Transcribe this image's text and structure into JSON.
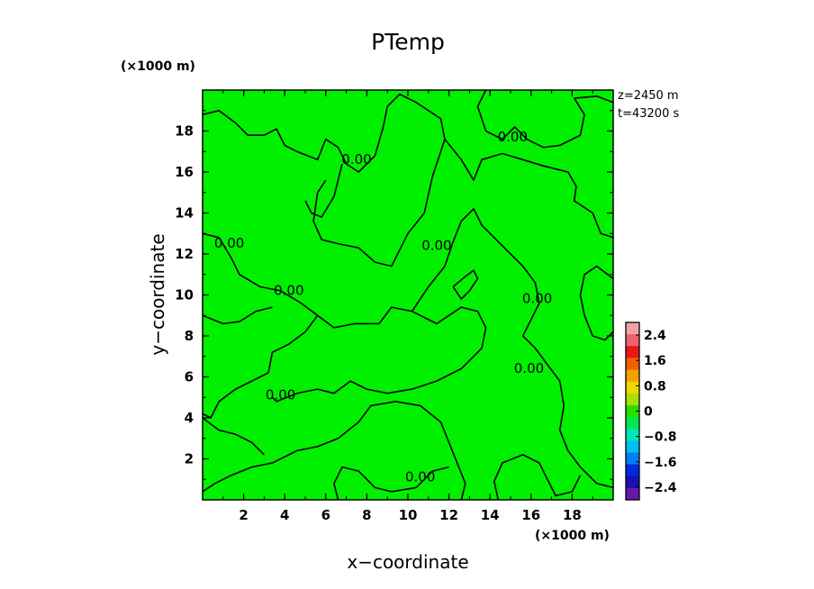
{
  "chart_data": {
    "type": "heatmap",
    "title": "PTemp",
    "xlabel": "x−coordinate",
    "ylabel": "y−coordinate",
    "x_unit": "(×1000 m)",
    "y_unit": "(×1000 m)",
    "xlim": [
      0,
      20
    ],
    "ylim": [
      0,
      20
    ],
    "x_ticks": [
      2,
      4,
      6,
      8,
      10,
      12,
      14,
      16,
      18
    ],
    "y_ticks": [
      2,
      4,
      6,
      8,
      10,
      12,
      14,
      16,
      18
    ],
    "x_tick_labels": [
      "2",
      "4",
      "6",
      "8",
      "10",
      "12",
      "14",
      "16",
      "18"
    ],
    "y_tick_labels": [
      "2",
      "4",
      "6",
      "8",
      "10",
      "12",
      "14",
      "16",
      "18"
    ],
    "info": [
      "z=2450 m",
      "t=43200 s"
    ],
    "colorbar": {
      "range": [
        -2.8,
        2.8
      ],
      "tick_values": [
        2.4,
        1.6,
        0.8,
        0,
        -0.8,
        -1.6,
        -2.4
      ],
      "tick_labels": [
        "2.4",
        "1.6",
        "0.8",
        "0",
        "−0.8",
        "−1.6",
        "−2.4"
      ],
      "colors": [
        "#f4a0a8",
        "#f06070",
        "#e81818",
        "#f06000",
        "#f8a000",
        "#f0d800",
        "#a8e000",
        "#28e000",
        "#00e850",
        "#00e8b8",
        "#00c0f0",
        "#0080f8",
        "#0028e0",
        "#1810b0",
        "#6818a8"
      ]
    },
    "field": {
      "background_color": "#00f000",
      "dominant_value_range": [
        -0.4,
        0.4
      ],
      "contour_levels": [
        0.0
      ],
      "contour_labels": [
        "0.00",
        "0.00",
        "0.00",
        "0.00",
        "0.00",
        "0.00",
        "0.00",
        "0.00",
        "0.00"
      ],
      "contour_paths": [
        [
          [
            0,
            18.8
          ],
          [
            0.8,
            19.0
          ],
          [
            1.6,
            18.4
          ],
          [
            2.2,
            17.8
          ],
          [
            3.0,
            17.8
          ],
          [
            3.6,
            18.1
          ],
          [
            4.0,
            17.3
          ],
          [
            4.6,
            17.0
          ],
          [
            5.6,
            16.6
          ],
          [
            6.0,
            17.6
          ],
          [
            6.6,
            17.2
          ],
          [
            7.0,
            16.4
          ],
          [
            7.6,
            16.0
          ],
          [
            8.4,
            16.8
          ],
          [
            8.8,
            18.2
          ],
          [
            9.0,
            19.2
          ],
          [
            9.6,
            19.8
          ],
          [
            10.4,
            19.4
          ],
          [
            11.6,
            18.6
          ],
          [
            11.8,
            17.6
          ],
          [
            11.2,
            15.8
          ],
          [
            10.8,
            14.0
          ],
          [
            10.0,
            13.0
          ],
          [
            9.2,
            11.4
          ],
          [
            8.4,
            11.6
          ],
          [
            7.6,
            12.3
          ],
          [
            6.6,
            12.5
          ],
          [
            5.8,
            12.7
          ],
          [
            5.4,
            13.6
          ],
          [
            5.6,
            15.0
          ],
          [
            6.0,
            15.6
          ]
        ],
        [
          [
            13.8,
            20
          ],
          [
            13.4,
            19.2
          ],
          [
            13.8,
            18.0
          ],
          [
            14.6,
            17.6
          ],
          [
            15.2,
            18.2
          ],
          [
            15.8,
            17.6
          ],
          [
            16.6,
            17.2
          ],
          [
            17.4,
            17.3
          ],
          [
            18.4,
            17.8
          ],
          [
            18.6,
            18.8
          ],
          [
            18.1,
            19.6
          ],
          [
            19.2,
            19.7
          ],
          [
            20,
            19.4
          ]
        ],
        [
          [
            11.8,
            17.6
          ],
          [
            12.6,
            16.6
          ],
          [
            13.2,
            15.6
          ],
          [
            13.6,
            16.6
          ],
          [
            14.6,
            16.9
          ],
          [
            15.6,
            16.6
          ],
          [
            16.6,
            16.3
          ],
          [
            17.8,
            16.0
          ],
          [
            18.2,
            15.3
          ],
          [
            18.1,
            14.6
          ],
          [
            19.0,
            14.0
          ],
          [
            19.4,
            13.0
          ],
          [
            20,
            12.8
          ]
        ],
        [
          [
            0,
            13.0
          ],
          [
            0.8,
            12.8
          ],
          [
            1.4,
            11.8
          ],
          [
            1.8,
            11.0
          ],
          [
            2.8,
            10.4
          ],
          [
            3.8,
            10.2
          ],
          [
            4.8,
            9.6
          ],
          [
            5.6,
            9.0
          ],
          [
            5.0,
            8.2
          ],
          [
            4.2,
            7.6
          ],
          [
            3.4,
            7.2
          ],
          [
            3.2,
            6.2
          ],
          [
            2.4,
            5.8
          ],
          [
            1.6,
            5.4
          ],
          [
            0.8,
            4.8
          ],
          [
            0.4,
            4.0
          ],
          [
            0,
            4.2
          ]
        ],
        [
          [
            0,
            9.0
          ],
          [
            1.0,
            8.6
          ],
          [
            1.8,
            8.7
          ],
          [
            2.6,
            9.2
          ],
          [
            3.4,
            9.4
          ]
        ],
        [
          [
            3.4,
            5.0
          ],
          [
            3.6,
            4.8
          ],
          [
            4.6,
            5.2
          ],
          [
            5.6,
            5.4
          ],
          [
            6.4,
            5.2
          ],
          [
            7.2,
            5.8
          ],
          [
            8.0,
            5.4
          ],
          [
            9.0,
            5.2
          ],
          [
            10.2,
            5.4
          ],
          [
            11.4,
            5.8
          ],
          [
            12.6,
            6.4
          ],
          [
            13.6,
            7.4
          ],
          [
            13.8,
            8.4
          ],
          [
            13.4,
            9.2
          ],
          [
            12.6,
            9.4
          ],
          [
            11.4,
            8.6
          ],
          [
            10.2,
            9.2
          ],
          [
            9.2,
            9.4
          ],
          [
            8.6,
            8.6
          ],
          [
            7.4,
            8.6
          ],
          [
            6.4,
            8.4
          ],
          [
            5.6,
            9.0
          ]
        ],
        [
          [
            10.2,
            9.2
          ],
          [
            11.0,
            10.4
          ],
          [
            11.8,
            11.4
          ],
          [
            12.2,
            12.6
          ],
          [
            12.6,
            13.6
          ],
          [
            13.2,
            14.2
          ],
          [
            13.6,
            13.4
          ],
          [
            14.2,
            12.8
          ],
          [
            14.8,
            12.2
          ],
          [
            15.6,
            11.4
          ],
          [
            16.2,
            10.6
          ],
          [
            16.4,
            9.6
          ],
          [
            16.0,
            8.8
          ],
          [
            15.6,
            8.0
          ],
          [
            16.2,
            7.4
          ],
          [
            16.8,
            6.6
          ],
          [
            17.4,
            5.8
          ],
          [
            17.6,
            4.6
          ],
          [
            17.4,
            3.4
          ],
          [
            17.8,
            2.4
          ],
          [
            18.4,
            1.6
          ],
          [
            19.2,
            0.8
          ],
          [
            20,
            0.6
          ]
        ],
        [
          [
            0,
            0.4
          ],
          [
            0.6,
            0.8
          ],
          [
            1.4,
            1.2
          ],
          [
            2.4,
            1.6
          ],
          [
            3.4,
            1.8
          ],
          [
            4.6,
            2.4
          ],
          [
            5.6,
            2.6
          ],
          [
            6.6,
            3.0
          ],
          [
            7.6,
            3.8
          ],
          [
            8.2,
            4.6
          ],
          [
            9.4,
            4.8
          ],
          [
            10.6,
            4.6
          ],
          [
            11.6,
            3.8
          ],
          [
            12.0,
            2.8
          ],
          [
            12.4,
            1.8
          ],
          [
            12.8,
            0.8
          ],
          [
            12.6,
            0
          ]
        ],
        [
          [
            6.6,
            0
          ],
          [
            6.4,
            0.8
          ],
          [
            6.8,
            1.6
          ],
          [
            7.6,
            1.4
          ],
          [
            8.4,
            0.6
          ],
          [
            9.2,
            0.4
          ],
          [
            10.4,
            0.6
          ],
          [
            11.2,
            1.4
          ],
          [
            12.0,
            1.6
          ]
        ],
        [
          [
            14.4,
            0
          ],
          [
            14.2,
            0.9
          ],
          [
            14.6,
            1.8
          ],
          [
            15.6,
            2.2
          ],
          [
            16.4,
            1.8
          ],
          [
            16.8,
            1.0
          ],
          [
            17.2,
            0.2
          ],
          [
            18.0,
            0.4
          ],
          [
            18.4,
            1.2
          ]
        ],
        [
          [
            5.0,
            14.6
          ],
          [
            5.3,
            14.0
          ],
          [
            5.8,
            13.8
          ],
          [
            6.4,
            14.8
          ],
          [
            6.6,
            15.6
          ],
          [
            6.8,
            16.4
          ]
        ],
        [
          [
            12.2,
            10.4
          ],
          [
            12.8,
            10.9
          ],
          [
            13.2,
            11.2
          ],
          [
            13.4,
            10.8
          ],
          [
            13.0,
            10.2
          ],
          [
            12.6,
            9.8
          ],
          [
            12.2,
            10.4
          ]
        ],
        [
          [
            20,
            10.8
          ],
          [
            19.2,
            11.4
          ],
          [
            18.6,
            11.0
          ],
          [
            18.4,
            10.0
          ],
          [
            18.6,
            9.0
          ],
          [
            19.0,
            8.0
          ],
          [
            19.6,
            7.8
          ],
          [
            20,
            8.2
          ]
        ],
        [
          [
            0,
            4.0
          ],
          [
            0.8,
            3.4
          ],
          [
            1.6,
            3.2
          ],
          [
            2.4,
            2.8
          ],
          [
            3.0,
            2.2
          ]
        ]
      ],
      "label_positions": [
        [
          7.5,
          16.6
        ],
        [
          15.1,
          17.7
        ],
        [
          11.4,
          12.4
        ],
        [
          1.3,
          12.5
        ],
        [
          4.2,
          10.2
        ],
        [
          16.3,
          9.8
        ],
        [
          15.9,
          6.4
        ],
        [
          3.8,
          5.1
        ],
        [
          10.6,
          1.1
        ]
      ]
    }
  }
}
